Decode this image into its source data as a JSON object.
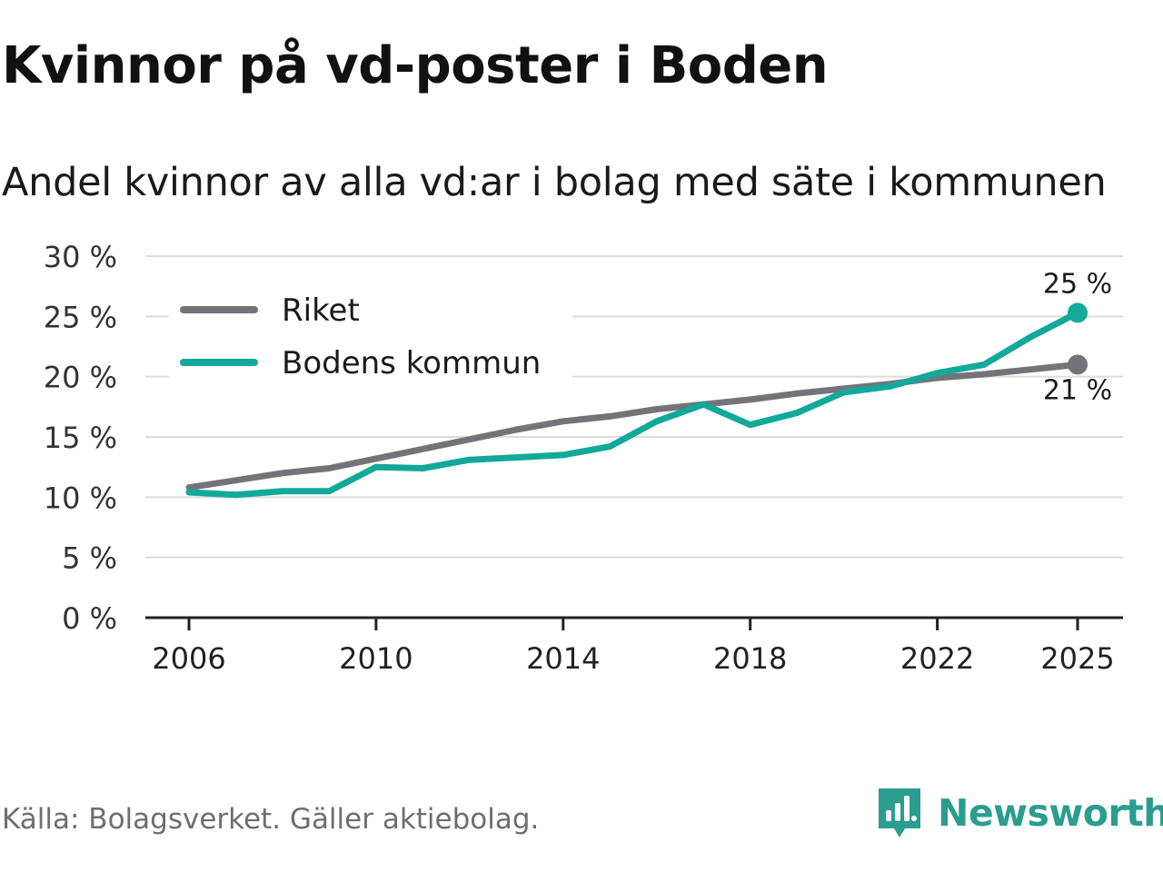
{
  "header": {
    "title": "Kvinnor på vd-poster i Boden",
    "subtitle": "Andel kvinnor av alla vd:ar i bolag med säte i kommunen"
  },
  "footer": {
    "source": "Källa: Bolagsverket. Gäller aktiebolag.",
    "brand": "Newsworthy",
    "brand_icon": "newsworthy-logo-icon"
  },
  "colors": {
    "riket": "#757379",
    "boden": "#12a89a",
    "grid": "#dcdcdc",
    "axis": "#222222",
    "brand": "#2a9d8f"
  },
  "chart_data": {
    "type": "line",
    "title": "Kvinnor på vd-poster i Boden",
    "subtitle": "Andel kvinnor av alla vd:ar i bolag med säte i kommunen",
    "xlabel": "",
    "ylabel": "",
    "x": [
      2006,
      2007,
      2008,
      2009,
      2010,
      2011,
      2012,
      2013,
      2014,
      2015,
      2016,
      2017,
      2018,
      2019,
      2020,
      2021,
      2022,
      2023,
      2024,
      2025
    ],
    "x_ticks": [
      "2006",
      "2010",
      "2014",
      "2018",
      "2022",
      "2025"
    ],
    "y_ticks": [
      "0 %",
      "5 %",
      "10 %",
      "15 %",
      "20 %",
      "25 %",
      "30 %"
    ],
    "ylim": [
      0,
      30
    ],
    "grid": true,
    "legend_position": "top-left",
    "series": [
      {
        "name": "Riket",
        "values": [
          10.8,
          11.4,
          12.0,
          12.4,
          13.2,
          14.0,
          14.8,
          15.6,
          16.3,
          16.7,
          17.3,
          17.7,
          18.1,
          18.6,
          19.0,
          19.4,
          19.9,
          20.2,
          20.6,
          21.0
        ],
        "end_label": "21 %"
      },
      {
        "name": "Bodens kommun",
        "values": [
          10.4,
          10.2,
          10.5,
          10.5,
          12.5,
          12.4,
          13.1,
          13.3,
          13.5,
          14.2,
          16.3,
          17.7,
          16.0,
          17.0,
          18.7,
          19.2,
          20.3,
          21.0,
          23.3,
          25.3
        ],
        "end_label": "25 %"
      }
    ]
  }
}
